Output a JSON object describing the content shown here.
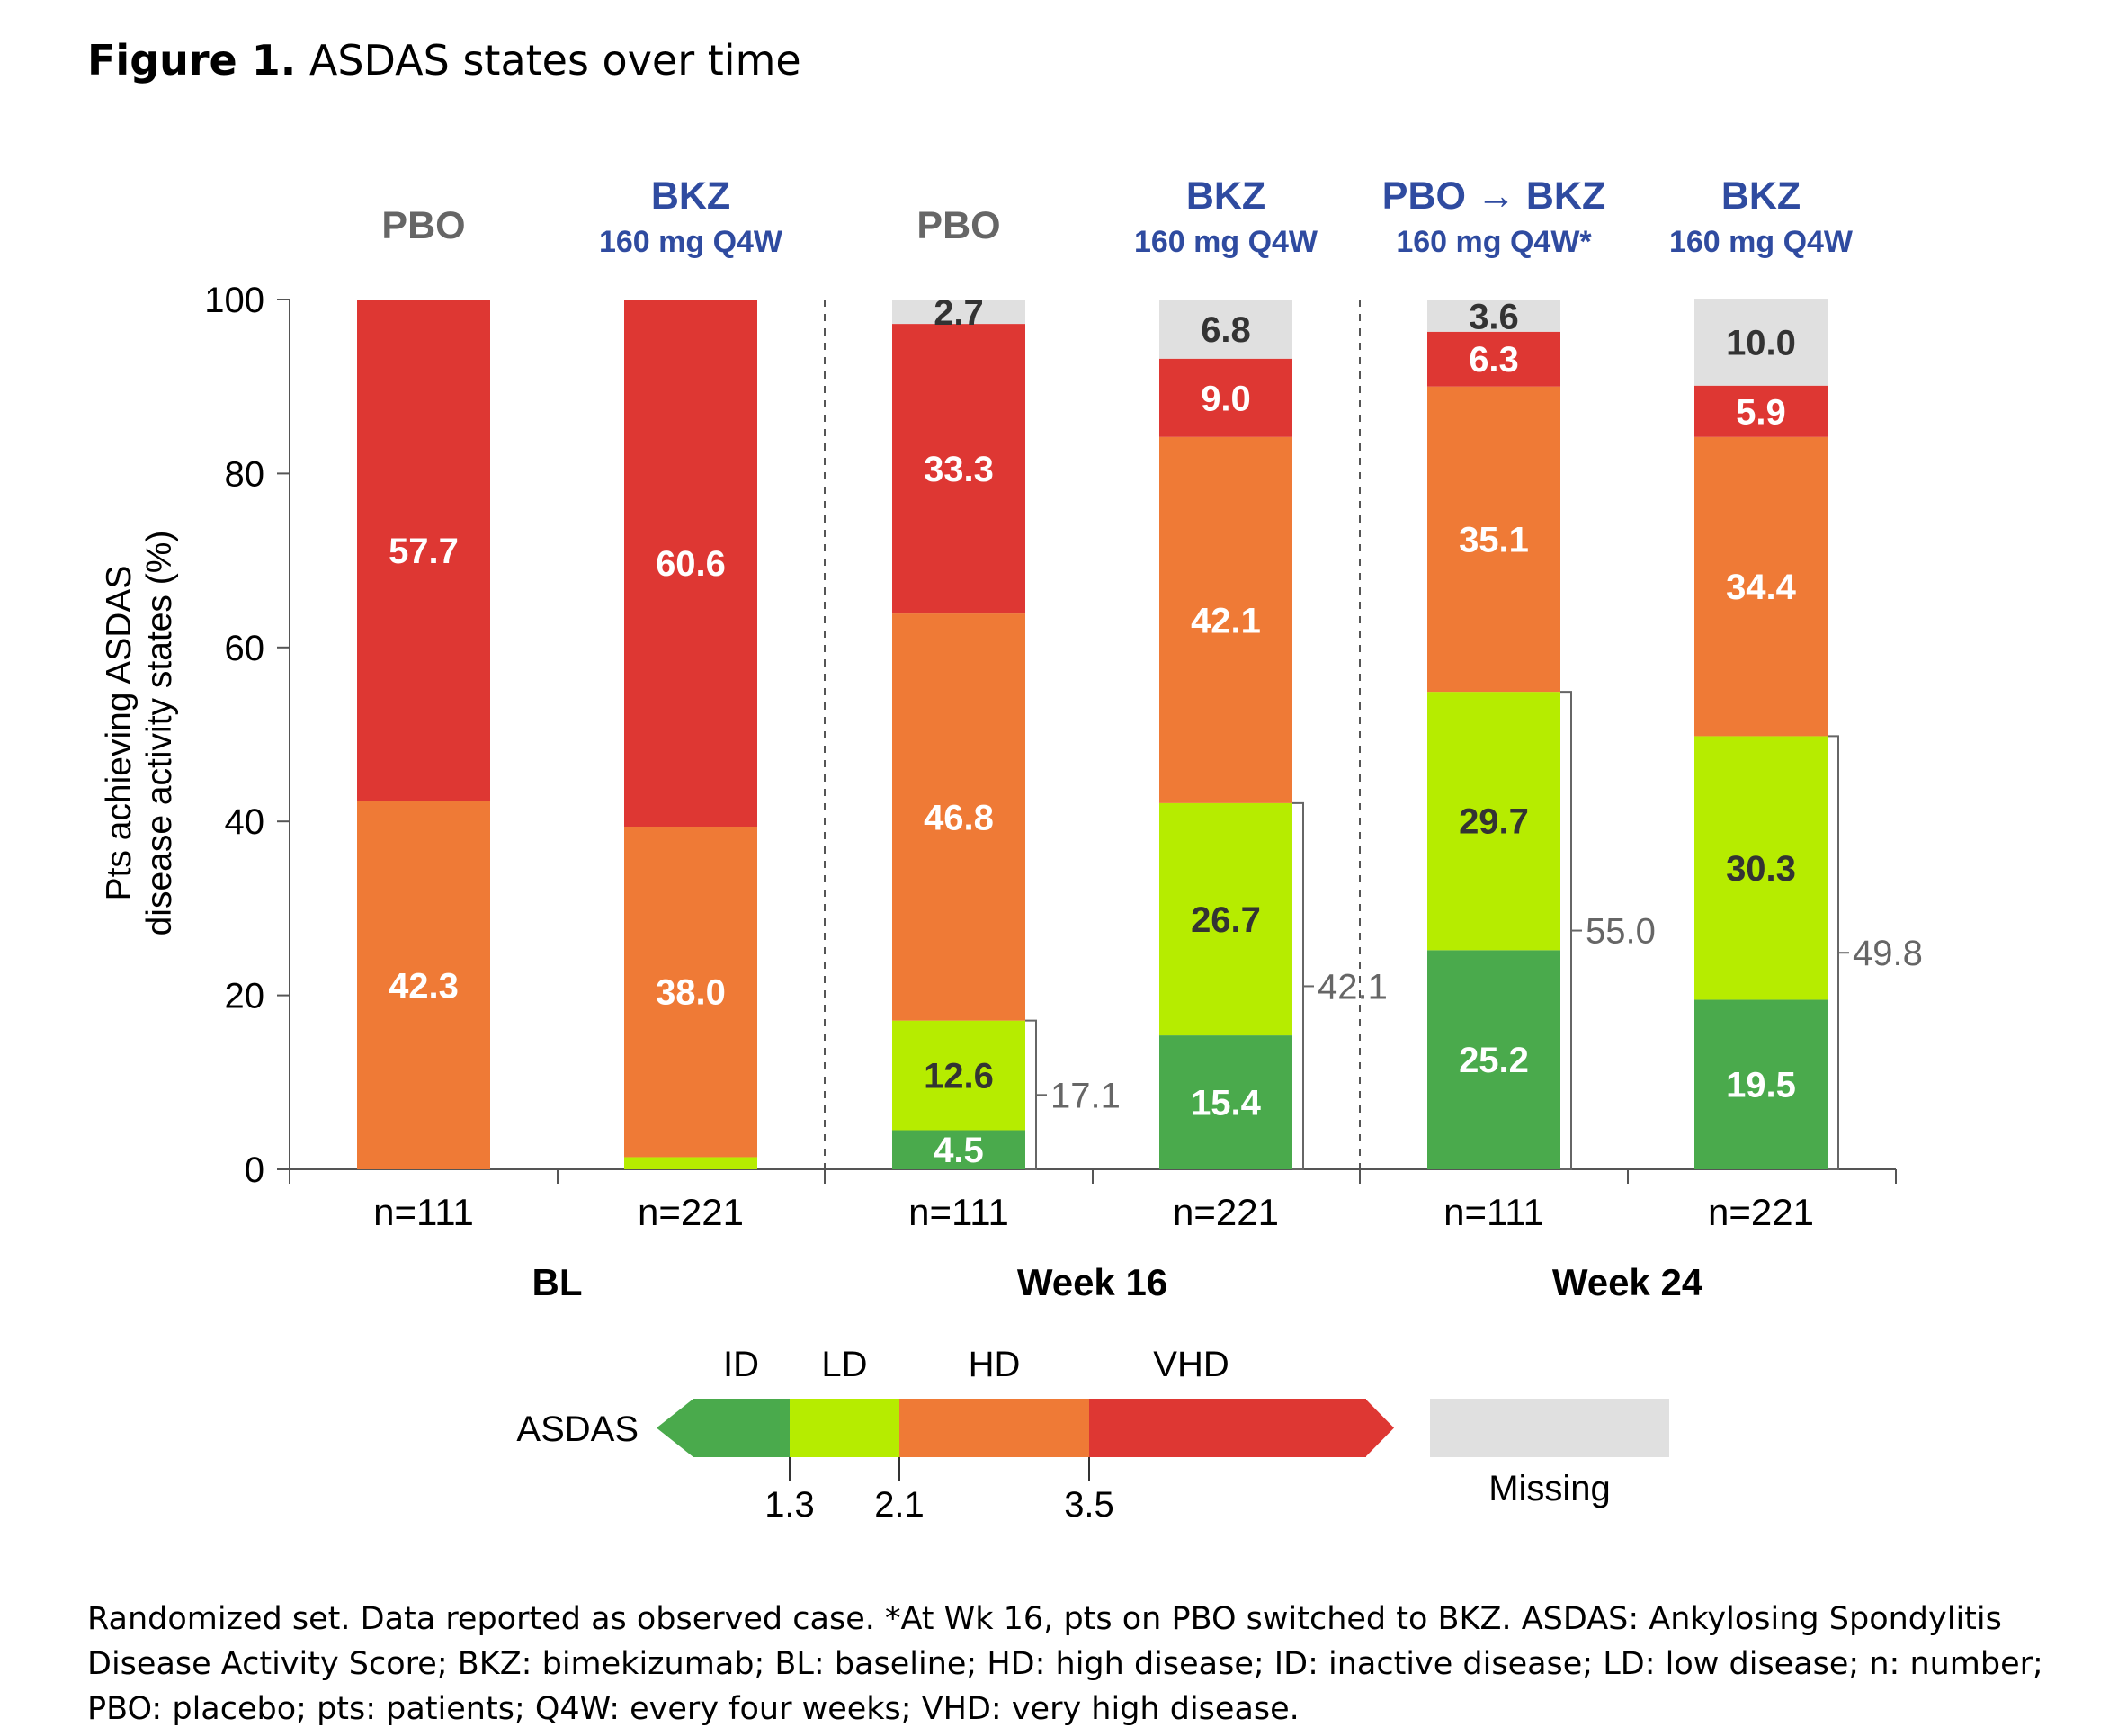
{
  "figure": {
    "title_bold": "Figure 1.",
    "title_rest": " ASDAS states over time",
    "footnote": "Randomized set. Data reported as observed case. *At Wk 16, pts on PBO switched to BKZ. ASDAS: Ankylosing Spondylitis Disease Activity Score; BKZ: bimekizumab; BL: baseline; HD: high disease; ID: inactive disease; LD: low disease; n: number; PBO: placebo; pts: patients; Q4W: every four weeks; VHD: very high disease."
  },
  "colors": {
    "ID": "#4aaa4c",
    "LD": "#b6ec00",
    "HD": "#ef7a36",
    "VHD": "#de3733",
    "Missing": "#e0e0e0",
    "pbo_header": "#666666",
    "bkz_header": "#2f4ba0",
    "bracket": "#666666"
  },
  "chart_data": {
    "type": "bar",
    "stacked": true,
    "ylabel": "Pts achieving ASDAS disease activity states (%)",
    "ylim": [
      0,
      100
    ],
    "yticks": [
      0,
      20,
      40,
      60,
      80,
      100
    ],
    "categories": [
      "n=111",
      "n=221",
      "n=111",
      "n=221",
      "n=111",
      "n=221"
    ],
    "groups": [
      {
        "label": "BL",
        "bars": [
          0,
          1
        ]
      },
      {
        "label": "Week 16",
        "bars": [
          2,
          3
        ]
      },
      {
        "label": "Week 24",
        "bars": [
          4,
          5
        ]
      }
    ],
    "bar_headers": [
      {
        "main": "PBO",
        "sub": "",
        "style": "pbo"
      },
      {
        "main": "BKZ",
        "sub": "160 mg Q4W",
        "style": "bkz"
      },
      {
        "main": "PBO",
        "sub": "",
        "style": "pbo"
      },
      {
        "main": "BKZ",
        "sub": "160 mg Q4W",
        "style": "bkz"
      },
      {
        "main": "PBO → BKZ",
        "sub": "160 mg Q4W*",
        "style": "bkz"
      },
      {
        "main": "BKZ",
        "sub": "160 mg Q4W",
        "style": "bkz"
      }
    ],
    "series": [
      {
        "name": "ID",
        "values": [
          0,
          0,
          4.5,
          15.4,
          25.2,
          19.5
        ]
      },
      {
        "name": "LD",
        "values": [
          0,
          1.4,
          12.6,
          26.7,
          29.7,
          30.3
        ]
      },
      {
        "name": "HD",
        "values": [
          42.3,
          38.0,
          46.8,
          42.1,
          35.1,
          34.4
        ]
      },
      {
        "name": "VHD",
        "values": [
          57.7,
          60.6,
          33.3,
          9.0,
          6.3,
          5.9
        ]
      },
      {
        "name": "Missing",
        "values": [
          0,
          0,
          2.7,
          6.8,
          3.6,
          10.0
        ]
      }
    ],
    "bracket_totals": [
      null,
      null,
      17.1,
      42.1,
      55.0,
      49.8
    ],
    "legend": {
      "label": "ASDAS",
      "states": [
        "ID",
        "LD",
        "HD",
        "VHD"
      ],
      "cutoffs": [
        "1.3",
        "2.1",
        "3.5"
      ],
      "missing_label": "Missing"
    }
  }
}
